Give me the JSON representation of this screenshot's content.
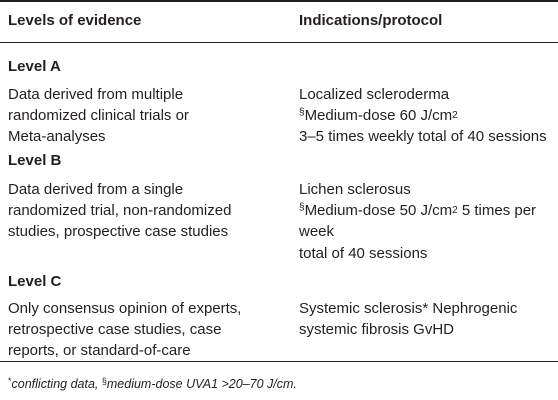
{
  "table": {
    "headers": [
      "Levels of evidence",
      "Indications/protocol"
    ],
    "rows": [
      {
        "level": "Level A",
        "evidence_lines": [
          "Data derived from multiple",
          "randomized clinical trials or",
          "Meta-analyses"
        ],
        "indication": "Localized scleroderma",
        "dose_symbol": "§",
        "dose_text": "Medium-dose 60 J/cm",
        "dose_exp": "2",
        "dose_suffix": "",
        "protocol_lines": [
          "3–5 times weekly total of 40 sessions"
        ]
      },
      {
        "level": "Level B",
        "evidence_lines": [
          "Data derived from a single",
          "randomized trial, non-randomized",
          "studies, prospective case studies"
        ],
        "indication": "Lichen sclerosus",
        "dose_symbol": "§",
        "dose_text": "Medium-dose 50 J/cm",
        "dose_exp": "2",
        "dose_suffix": " 5 times per",
        "protocol_lines": [
          "week",
          "total of 40 sessions"
        ]
      },
      {
        "level": "Level C",
        "evidence_lines": [
          "Only consensus opinion of experts,",
          "retrospective case studies, case",
          "reports, or standard-of-care"
        ],
        "indication_lines": [
          "Systemic sclerosis* Nephrogenic",
          "systemic fibrosis GvHD"
        ]
      }
    ]
  },
  "footnote": {
    "star": "*",
    "star_text": "conflicting data, ",
    "section": "§",
    "section_text": "medium-dose UVA1 >20–70 J/cm."
  }
}
